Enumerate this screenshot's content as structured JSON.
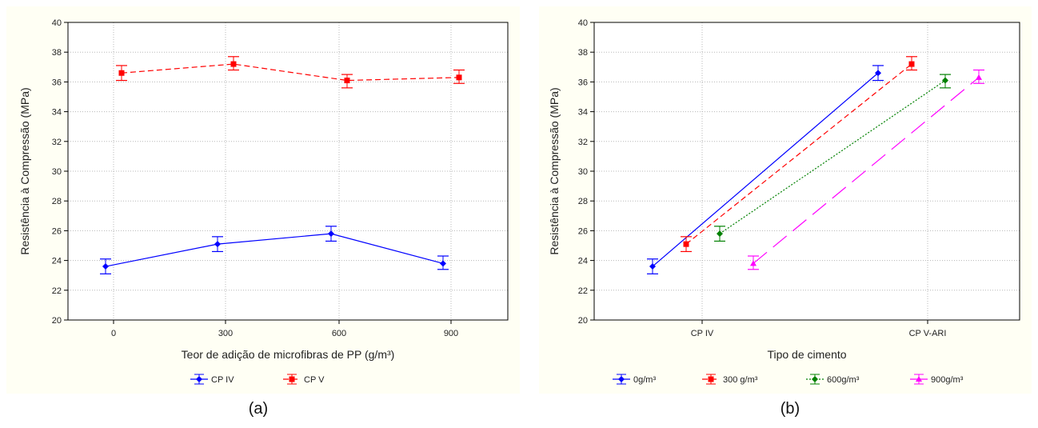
{
  "chart_data": [
    {
      "type": "line",
      "panel_caption": "(a)",
      "xlabel": "Teor de adição de microfibras de PP (g/m³)",
      "ylabel": "Resistência à Compressão (MPa)",
      "categories": [
        "0",
        "300",
        "600",
        "900"
      ],
      "ylim": [
        20,
        40
      ],
      "yticks": [
        20,
        22,
        24,
        26,
        28,
        30,
        32,
        34,
        36,
        38,
        40
      ],
      "grid": true,
      "legend_position": "bottom",
      "series": [
        {
          "name": "CP IV",
          "color": "#0000ff",
          "dash": "solid",
          "marker": "diamond",
          "values": [
            23.6,
            25.1,
            25.8,
            23.8
          ],
          "err_low": [
            23.1,
            24.6,
            25.3,
            23.4
          ],
          "err_high": [
            24.1,
            25.6,
            26.3,
            24.3
          ]
        },
        {
          "name": "CP V",
          "color": "#ff0000",
          "dash": "dash",
          "marker": "square",
          "values": [
            36.6,
            37.2,
            36.1,
            36.3
          ],
          "err_low": [
            36.1,
            36.8,
            35.6,
            35.9
          ],
          "err_high": [
            37.1,
            37.7,
            36.5,
            36.8
          ]
        }
      ]
    },
    {
      "type": "line",
      "panel_caption": "(b)",
      "xlabel": "Tipo de cimento",
      "ylabel": "Resistência à Compressão (MPa)",
      "categories": [
        "CP IV",
        "CP V-ARI"
      ],
      "ylim": [
        20,
        40
      ],
      "yticks": [
        20,
        22,
        24,
        26,
        28,
        30,
        32,
        34,
        36,
        38,
        40
      ],
      "grid": true,
      "legend_position": "bottom",
      "series": [
        {
          "name": "0g/m³",
          "color": "#0000ff",
          "dash": "solid",
          "marker": "diamond",
          "values": [
            23.6,
            36.6
          ],
          "err_low": [
            23.1,
            36.1
          ],
          "err_high": [
            24.1,
            37.1
          ]
        },
        {
          "name": "300 g/m³",
          "color": "#ff0000",
          "dash": "dash",
          "marker": "square",
          "values": [
            25.1,
            37.2
          ],
          "err_low": [
            24.6,
            36.8
          ],
          "err_high": [
            25.6,
            37.7
          ]
        },
        {
          "name": "600g/m³",
          "color": "#008000",
          "dash": "dot",
          "marker": "diamond",
          "values": [
            25.8,
            36.1
          ],
          "err_low": [
            25.3,
            35.6
          ],
          "err_high": [
            26.3,
            36.5
          ]
        },
        {
          "name": "900g/m³",
          "color": "#ff00ff",
          "dash": "longdash",
          "marker": "triangle",
          "values": [
            23.8,
            36.3
          ],
          "err_low": [
            23.4,
            35.9
          ],
          "err_high": [
            24.3,
            36.8
          ]
        }
      ]
    }
  ]
}
